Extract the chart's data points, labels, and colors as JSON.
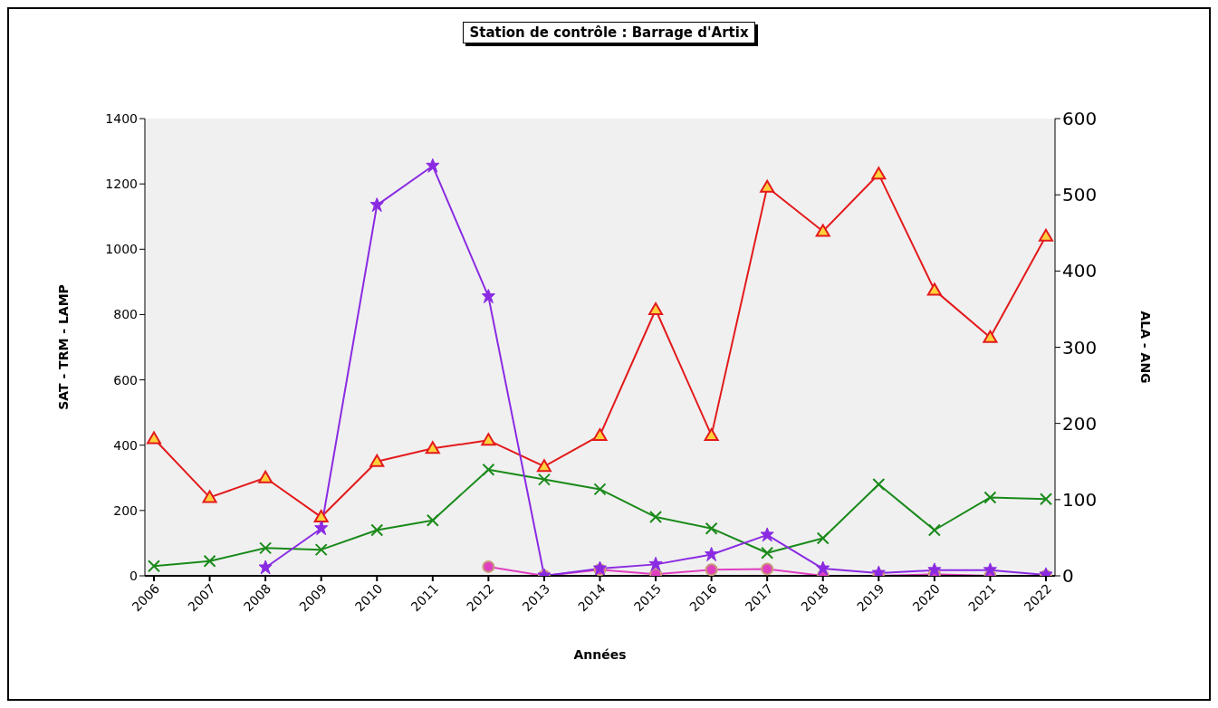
{
  "chart_data": {
    "type": "line",
    "title": "Station de contrôle : Barrage d'Artix",
    "xlabel": "Années",
    "ylabel": "SAT - TRM - LAMP",
    "y2label": "ALA - ANG",
    "categories": [
      "2006",
      "2007",
      "2008",
      "2009",
      "2010",
      "2011",
      "2012",
      "2013",
      "2014",
      "2015",
      "2016",
      "2017",
      "2018",
      "2019",
      "2020",
      "2021",
      "2022"
    ],
    "series": [
      {
        "color": "#e31a1c",
        "marker": "triangle",
        "values": [
          420,
          240,
          300,
          180,
          350,
          390,
          415,
          335,
          430,
          815,
          430,
          1190,
          1055,
          1230,
          875,
          730,
          1040
        ]
      },
      {
        "color": "#1a8a1a",
        "marker": "cross",
        "values": [
          30,
          45,
          85,
          80,
          140,
          170,
          325,
          295,
          265,
          180,
          145,
          70,
          115,
          280,
          140,
          240,
          235
        ]
      },
      {
        "color": "#e040c0",
        "marker": "circle",
        "axis": "y2",
        "values": [
          null,
          null,
          null,
          null,
          null,
          null,
          12,
          0,
          8,
          2,
          8,
          9,
          0,
          0,
          2,
          0,
          0
        ]
      },
      {
        "color": "#8a2be2",
        "marker": "star",
        "values": [
          null,
          null,
          25,
          145,
          1135,
          1255,
          855,
          0,
          22,
          35,
          65,
          125,
          22,
          8,
          17,
          17,
          3
        ]
      }
    ],
    "ylim": [
      0,
      1400
    ],
    "yticks": [
      0,
      200,
      400,
      600,
      800,
      1000,
      1200,
      1400
    ],
    "y2lim": [
      0,
      600
    ],
    "y2ticks": [
      0,
      100,
      200,
      300,
      400,
      500,
      600
    ],
    "grid": false,
    "legend": false
  }
}
